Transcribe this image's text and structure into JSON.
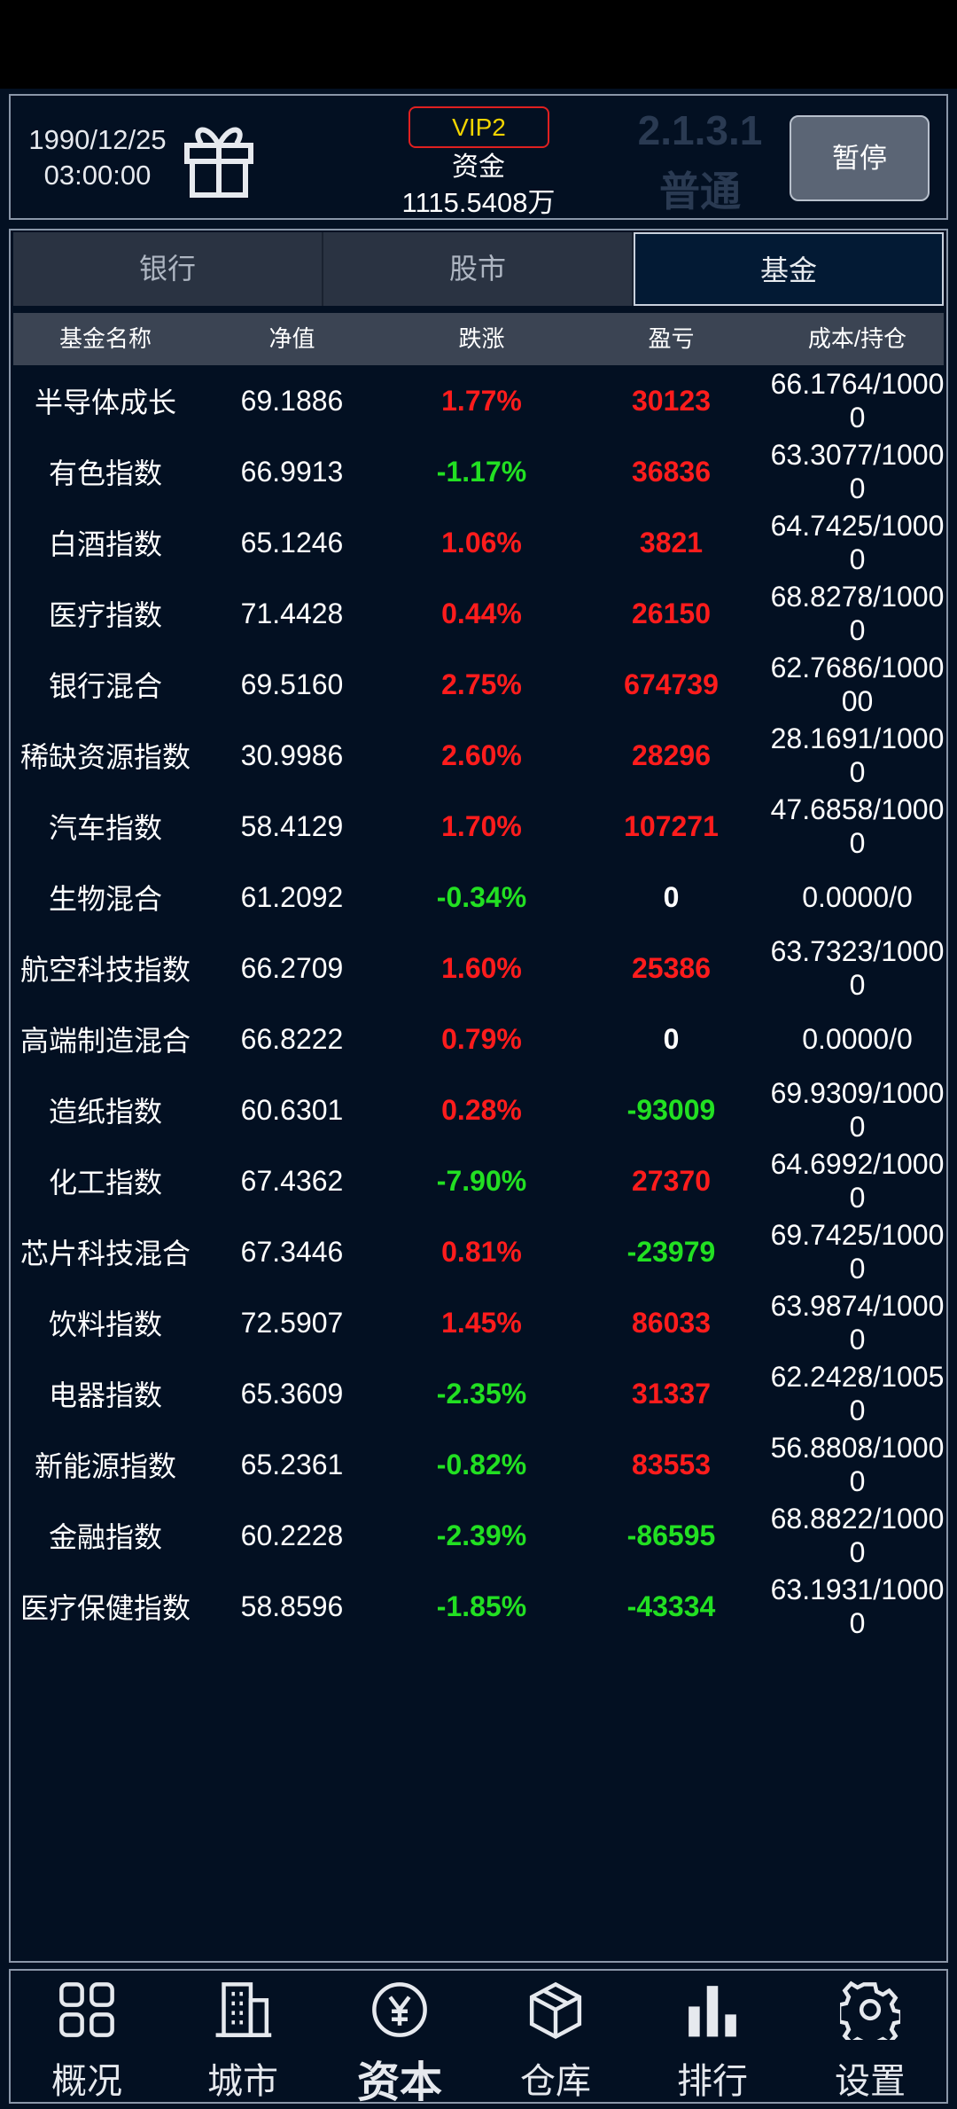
{
  "header": {
    "date": "1990/12/25",
    "time": "03:00:00",
    "vip": "VIP2",
    "funds_label": "资金",
    "funds": "1115.5408万",
    "version": "2.1.3.1",
    "mode": "普通",
    "pause": "暂停"
  },
  "tabs": [
    {
      "label": "银行"
    },
    {
      "label": "股市"
    },
    {
      "label": "基金",
      "selected": true
    }
  ],
  "table": {
    "columns": [
      "基金名称",
      "净值",
      "跌涨",
      "盈亏",
      "成本/持仓"
    ],
    "rows": [
      [
        "半导体成长",
        "69.1886",
        "1.77%",
        "30123",
        "66.1764/10000"
      ],
      [
        "有色指数",
        "66.9913",
        "-1.17%",
        "36836",
        "63.3077/10000"
      ],
      [
        "白酒指数",
        "65.1246",
        "1.06%",
        "3821",
        "64.7425/10000"
      ],
      [
        "医疗指数",
        "71.4428",
        "0.44%",
        "26150",
        "68.8278/10000"
      ],
      [
        "银行混合",
        "69.5160",
        "2.75%",
        "674739",
        "62.7686/100000"
      ],
      [
        "稀缺资源指数",
        "30.9986",
        "2.60%",
        "28296",
        "28.1691/10000"
      ],
      [
        "汽车指数",
        "58.4129",
        "1.70%",
        "107271",
        "47.6858/10000"
      ],
      [
        "生物混合",
        "61.2092",
        "-0.34%",
        "0",
        "0.0000/0"
      ],
      [
        "航空科技指数",
        "66.2709",
        "1.60%",
        "25386",
        "63.7323/10000"
      ],
      [
        "高端制造混合",
        "66.8222",
        "0.79%",
        "0",
        "0.0000/0"
      ],
      [
        "造纸指数",
        "60.6301",
        "0.28%",
        "-93009",
        "69.9309/10000"
      ],
      [
        "化工指数",
        "67.4362",
        "-7.90%",
        "27370",
        "64.6992/10000"
      ],
      [
        "芯片科技混合",
        "67.3446",
        "0.81%",
        "-23979",
        "69.7425/10000"
      ],
      [
        "饮料指数",
        "72.5907",
        "1.45%",
        "86033",
        "63.9874/10000"
      ],
      [
        "电器指数",
        "65.3609",
        "-2.35%",
        "31337",
        "62.2428/10050"
      ],
      [
        "新能源指数",
        "65.2361",
        "-0.82%",
        "83553",
        "56.8808/10000"
      ],
      [
        "金融指数",
        "60.2228",
        "-2.39%",
        "-86595",
        "68.8822/10000"
      ],
      [
        "医疗保健指数",
        "58.8596",
        "-1.85%",
        "-43334",
        "63.1931/10000"
      ]
    ]
  },
  "nav": [
    {
      "label": "概况"
    },
    {
      "label": "城市"
    },
    {
      "label": "资本",
      "selected": true
    },
    {
      "label": "仓库"
    },
    {
      "label": "排行"
    },
    {
      "label": "设置"
    }
  ]
}
